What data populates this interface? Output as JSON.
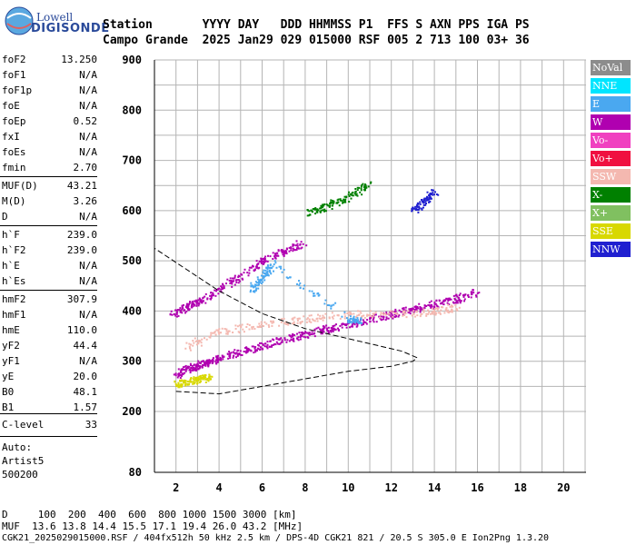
{
  "logo": {
    "top": "Lowell",
    "bottom": "DIGISONDE"
  },
  "header": {
    "row1": "Station       YYYY DAY   DDD HHMMSS P1  FFS S AXN PPS IGA PS",
    "row2": "Campo Grande  2025 Jan29 029 015000 RSF 005 2 713 100 03+ 36"
  },
  "params": [
    {
      "name": "foF2",
      "value": "13.250"
    },
    {
      "name": "foF1",
      "value": "N/A"
    },
    {
      "name": "foF1p",
      "value": "N/A"
    },
    {
      "name": "foE",
      "value": "N/A"
    },
    {
      "name": "foEp",
      "value": "0.52"
    },
    {
      "name": "fxI",
      "value": "N/A"
    },
    {
      "name": "foEs",
      "value": "N/A"
    },
    {
      "name": "fmin",
      "value": "2.70"
    },
    {
      "name": "MUF(D)",
      "value": "43.21"
    },
    {
      "name": "M(D)",
      "value": "3.26"
    },
    {
      "name": "D",
      "value": "N/A"
    },
    {
      "name": "h`F",
      "value": "239.0"
    },
    {
      "name": "h`F2",
      "value": "239.0"
    },
    {
      "name": "h`E",
      "value": "N/A"
    },
    {
      "name": "h`Es",
      "value": "N/A"
    },
    {
      "name": "hmF2",
      "value": "307.9"
    },
    {
      "name": "hmF1",
      "value": "N/A"
    },
    {
      "name": "hmE",
      "value": "110.0"
    },
    {
      "name": "yF2",
      "value": "44.4"
    },
    {
      "name": "yF1",
      "value": "N/A"
    },
    {
      "name": "yE",
      "value": "20.0"
    },
    {
      "name": "B0",
      "value": "48.1"
    },
    {
      "name": "B1",
      "value": "1.57"
    },
    {
      "name": "C-level",
      "value": "33"
    }
  ],
  "autoscale": {
    "line1": "Auto:",
    "line2": "Artist5",
    "line3": "500200"
  },
  "legend": [
    {
      "label": "NoVal",
      "color": "#8c8c8c"
    },
    {
      "label": "NNE",
      "color": "#00e5ff"
    },
    {
      "label": "E",
      "color": "#4aa8f0"
    },
    {
      "label": "W",
      "color": "#b000b0"
    },
    {
      "label": "Vo-",
      "color": "#f040c0"
    },
    {
      "label": "Vo+",
      "color": "#f01040"
    },
    {
      "label": "SSW",
      "color": "#f4b8b0"
    },
    {
      "label": "X-",
      "color": "#008000"
    },
    {
      "label": "X+",
      "color": "#80c060"
    },
    {
      "label": "SSE",
      "color": "#d8d800"
    },
    {
      "label": "NNW",
      "color": "#2020d0"
    }
  ],
  "bottom": {
    "line1": "D     100  200  400  600  800 1000 1500 3000 [km]",
    "line2": "MUF  13.6 13.8 14.4 15.5 17.1 19.4 26.0 43.2 [MHz]",
    "line3": "CGK21_2025029015000.RSF / 404fx512h 50 kHz 2.5 km / DPS-4D CGK21 821 / 20.5 S 305.0 E Ion2Png 1.3.20"
  },
  "chart_data": {
    "type": "scatter",
    "title": "",
    "xlabel": "",
    "ylabel": "",
    "xlim": [
      1,
      21
    ],
    "ylim": [
      80,
      900
    ],
    "xticks": [
      2,
      4,
      6,
      8,
      10,
      12,
      14,
      16,
      18,
      20
    ],
    "yticks": [
      200,
      300,
      400,
      500,
      600,
      700,
      800,
      900
    ],
    "y_extra_label": 80,
    "grid": true,
    "series": [
      {
        "name": "W",
        "color": "#b000b0",
        "x": [
          2.0,
          2.5,
          3.0,
          3.5,
          4.0,
          5.0,
          6.0,
          7.0,
          8.0,
          9.0,
          10.0,
          11.0,
          12.0,
          13.0,
          14.0,
          15.0,
          16.0
        ],
        "y": [
          275,
          285,
          293,
          300,
          308,
          320,
          332,
          345,
          355,
          365,
          375,
          385,
          395,
          405,
          415,
          425,
          440
        ]
      },
      {
        "name": "W",
        "color": "#b000b0",
        "x": [
          1.8,
          2.5,
          3.0,
          4.0,
          5.0,
          6.0,
          7.0,
          8.0
        ],
        "y": [
          395,
          410,
          420,
          445,
          470,
          500,
          520,
          540
        ]
      },
      {
        "name": "SSW",
        "color": "#f4b8b0",
        "x": [
          2.5,
          4.0,
          6.0,
          8.0,
          10.0,
          12.0,
          14.0,
          15.0
        ],
        "y": [
          330,
          360,
          375,
          385,
          395,
          395,
          400,
          410
        ]
      },
      {
        "name": "SSE",
        "color": "#d8d800",
        "x": [
          2.0,
          2.5,
          3.0,
          3.5
        ],
        "y": [
          255,
          260,
          265,
          270
        ]
      },
      {
        "name": "E",
        "color": "#4aa8f0",
        "x": [
          5.5,
          6.0,
          6.5,
          10.0,
          10.5
        ],
        "y": [
          445,
          470,
          495,
          385,
          380
        ]
      },
      {
        "name": "X-",
        "color": "#008000",
        "x": [
          8.0,
          9.0,
          10.0,
          11.0
        ],
        "y": [
          595,
          610,
          630,
          655
        ]
      },
      {
        "name": "NNW",
        "color": "#2020d0",
        "x": [
          13.0,
          13.5,
          14.0
        ],
        "y": [
          600,
          620,
          640
        ]
      }
    ],
    "profile": {
      "name": "",
      "x": [
        2.0,
        4.0,
        6.0,
        8.0,
        10.0,
        12.0,
        13.0,
        13.2,
        12.5,
        10.0,
        8.0,
        6.0,
        4.0,
        1.0
      ],
      "y": [
        240,
        235,
        250,
        265,
        280,
        290,
        300,
        307,
        320,
        345,
        365,
        395,
        440,
        525
      ]
    }
  }
}
